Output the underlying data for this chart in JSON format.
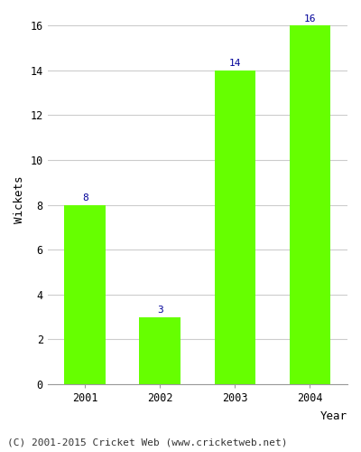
{
  "years": [
    "2001",
    "2002",
    "2003",
    "2004"
  ],
  "values": [
    8,
    3,
    14,
    16
  ],
  "bar_color": "#66FF00",
  "label_color": "#000099",
  "xlabel": "Year",
  "ylabel": "Wickets",
  "ylim": [
    0,
    16
  ],
  "yticks": [
    0,
    2,
    4,
    6,
    8,
    10,
    12,
    14,
    16
  ],
  "label_fontsize": 8,
  "axis_label_fontsize": 9,
  "tick_fontsize": 8.5,
  "footer_text": "(C) 2001-2015 Cricket Web (www.cricketweb.net)",
  "footer_fontsize": 8,
  "background_color": "#ffffff",
  "plot_background_color": "#ffffff",
  "grid_color": "#cccccc"
}
